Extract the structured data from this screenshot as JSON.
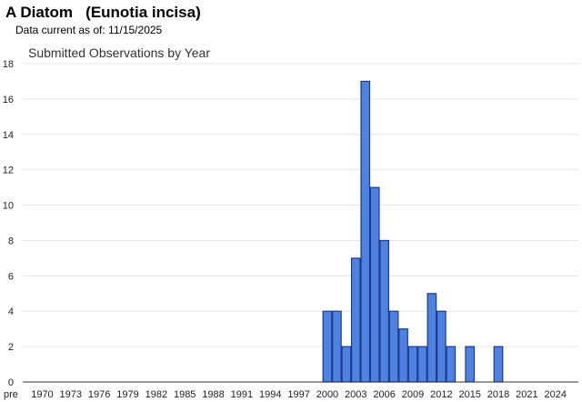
{
  "header": {
    "title": "A Diatom   (Eunotia incisa)",
    "data_current": "Data current as of: 11/15/2025"
  },
  "chart_data": {
    "type": "bar",
    "title": "Submitted Observations by Year",
    "xlabel": "",
    "ylabel": "",
    "ylim": [
      0,
      18
    ],
    "y_ticks": [
      0,
      2,
      4,
      6,
      8,
      10,
      12,
      14,
      16,
      18
    ],
    "grid": true,
    "legend": "none",
    "bar_color": "#4f81e0",
    "bar_edge_color": "#1a3a8c",
    "categories": [
      "pre",
      "1970",
      "1971",
      "1972",
      "1973",
      "1974",
      "1975",
      "1976",
      "1977",
      "1978",
      "1979",
      "1980",
      "1981",
      "1982",
      "1983",
      "1984",
      "1985",
      "1986",
      "1987",
      "1988",
      "1989",
      "1990",
      "1991",
      "1992",
      "1993",
      "1994",
      "1995",
      "1996",
      "1997",
      "1998",
      "1999",
      "2000",
      "2001",
      "2002",
      "2003",
      "2004",
      "2005",
      "2006",
      "2007",
      "2008",
      "2009",
      "2010",
      "2011",
      "2012",
      "2013",
      "2014",
      "2015",
      "2016",
      "2017",
      "2018",
      "2019",
      "2020",
      "2021",
      "2022",
      "2023",
      "2024",
      "2025"
    ],
    "values": [
      0,
      0,
      0,
      0,
      0,
      0,
      0,
      0,
      0,
      0,
      0,
      0,
      0,
      0,
      0,
      0,
      0,
      0,
      0,
      0,
      0,
      0,
      0,
      0,
      0,
      0,
      0,
      0,
      0,
      0,
      0,
      4,
      4,
      2,
      7,
      17,
      11,
      8,
      4,
      3,
      2,
      2,
      5,
      4,
      2,
      0,
      2,
      0,
      0,
      2,
      0,
      0,
      0,
      0,
      0,
      0,
      0
    ],
    "x_tick_labels": [
      "pre",
      "1970",
      "1973",
      "1976",
      "1979",
      "1982",
      "1985",
      "1988",
      "1991",
      "1994",
      "1997",
      "2000",
      "2003",
      "2006",
      "2009",
      "2012",
      "2015",
      "2018",
      "2021",
      "2024"
    ]
  }
}
